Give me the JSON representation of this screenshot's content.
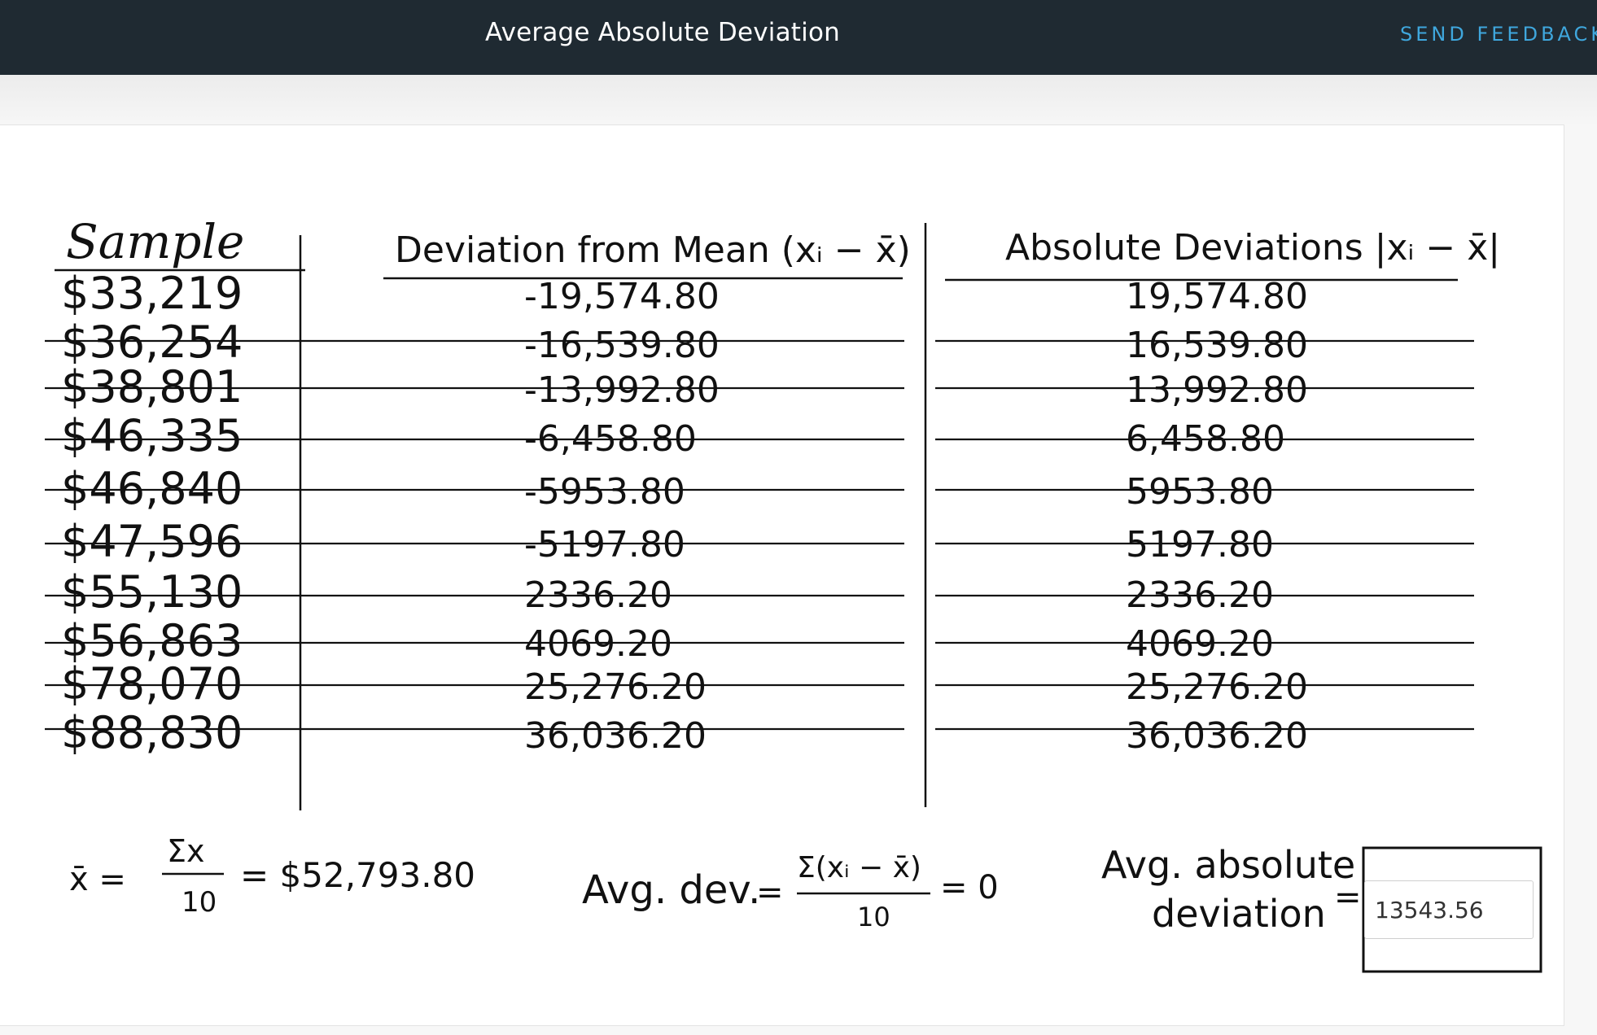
{
  "header": {
    "title": "Average Absolute Deviation",
    "feedback_label": "SEND FEEDBACK"
  },
  "table": {
    "headers": {
      "sample": "Sample",
      "deviation": "Deviation from Mean (xᵢ − x̄)",
      "absolute": "Absolute Deviations |xᵢ − x̄|"
    },
    "rows": [
      {
        "sample": "$33,219",
        "deviation": "-19,574.80",
        "absolute": "19,574.80"
      },
      {
        "sample": "$36,254",
        "deviation": "-16,539.80",
        "absolute": "16,539.80"
      },
      {
        "sample": "$38,801",
        "deviation": "-13,992.80",
        "absolute": "13,992.80"
      },
      {
        "sample": "$46,335",
        "deviation": "-6,458.80",
        "absolute": "6,458.80"
      },
      {
        "sample": "$46,840",
        "deviation": "-5953.80",
        "absolute": "5953.80"
      },
      {
        "sample": "$47,596",
        "deviation": "-5197.80",
        "absolute": "5197.80"
      },
      {
        "sample": "$55,130",
        "deviation": "2336.20",
        "absolute": "2336.20"
      },
      {
        "sample": "$56,863",
        "deviation": "4069.20",
        "absolute": "4069.20"
      },
      {
        "sample": "$78,070",
        "deviation": "25,276.20",
        "absolute": "25,276.20"
      },
      {
        "sample": "$88,830",
        "deviation": "36,036.20",
        "absolute": "36,036.20"
      }
    ]
  },
  "formulas": {
    "mean_lhs": "x̄ =",
    "mean_numerator": "Σx",
    "mean_denominator": "10",
    "mean_result": "= $52,793.80",
    "avg_dev_label": "Avg. dev.",
    "avg_dev_eq": "=",
    "avg_dev_numerator": "Σ(xᵢ − x̄)",
    "avg_dev_denominator": "10",
    "avg_dev_result": "= 0",
    "avg_abs_label_line1": "Avg. absolute",
    "avg_abs_label_line2": "deviation",
    "avg_abs_eq": "="
  },
  "answer": {
    "value": "13543.56"
  }
}
